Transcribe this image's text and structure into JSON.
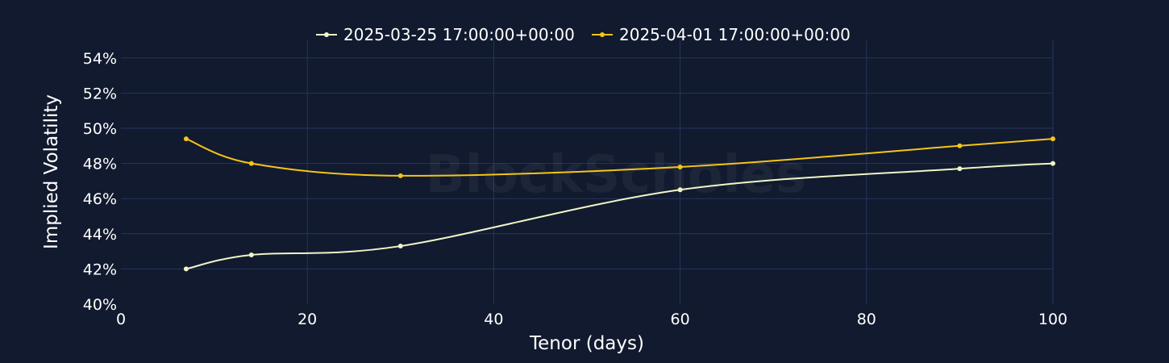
{
  "watermark": "BlockScholes",
  "colors": {
    "background": "#111a2e",
    "grid": "#26355c"
  },
  "chart_data": {
    "type": "line",
    "xlabel": "Tenor (days)",
    "ylabel": "Implied Volatility",
    "xlim": [
      0,
      100
    ],
    "ylim": [
      40,
      55
    ],
    "x_ticks": [
      0,
      20,
      40,
      60,
      80,
      100
    ],
    "x_tick_labels": [
      "0",
      "20",
      "40",
      "60",
      "80",
      "100"
    ],
    "y_ticks": [
      40,
      42,
      44,
      46,
      48,
      50,
      52,
      54
    ],
    "y_tick_labels": [
      "40%",
      "42%",
      "44%",
      "46%",
      "48%",
      "50%",
      "52%",
      "54%"
    ],
    "grid": true,
    "legend_position": "top-center",
    "series": [
      {
        "name": "2025-03-25 17:00:00+00:00",
        "color": "#f2f5c8",
        "x": [
          7,
          14,
          30,
          60,
          90,
          100
        ],
        "y": [
          42.0,
          42.8,
          43.3,
          46.5,
          47.7,
          48.0
        ]
      },
      {
        "name": "2025-04-01 17:00:00+00:00",
        "color": "#f5c518",
        "x": [
          7,
          14,
          30,
          60,
          90,
          100
        ],
        "y": [
          49.4,
          48.0,
          47.3,
          47.8,
          49.0,
          49.4
        ]
      }
    ]
  }
}
